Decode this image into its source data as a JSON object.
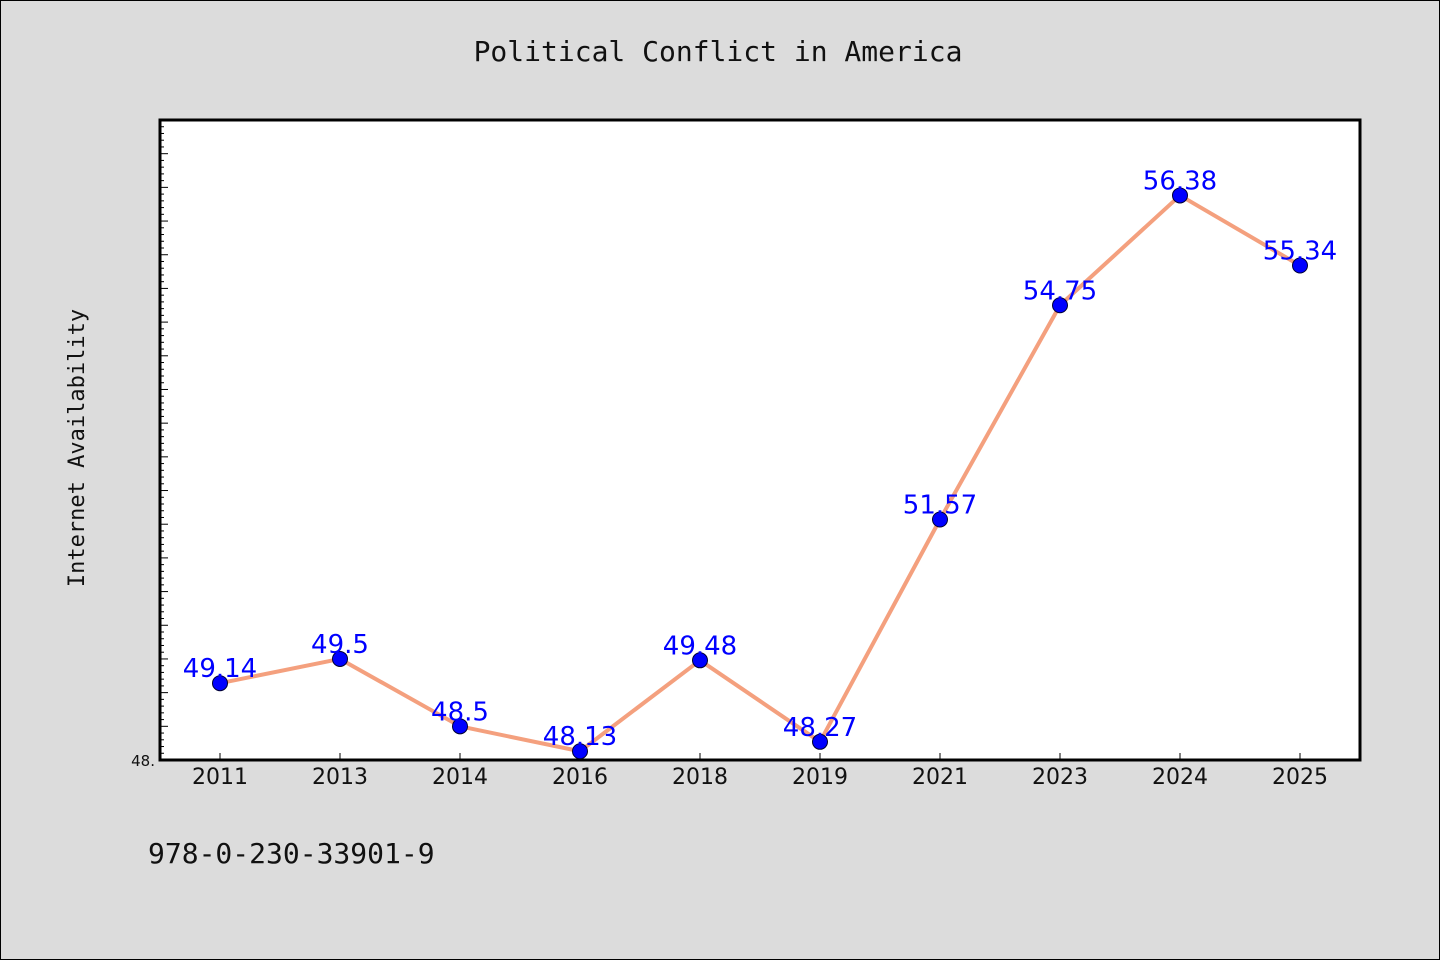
{
  "chart_data": {
    "type": "line",
    "title": "Political Conflict in America",
    "xlabel": "",
    "ylabel": "Internet Availability",
    "categories": [
      "2011",
      "2013",
      "2014",
      "2016",
      "2018",
      "2019",
      "2021",
      "2023",
      "2024",
      "2025"
    ],
    "values": [
      49.14,
      49.5,
      48.5,
      48.13,
      49.48,
      48.27,
      51.57,
      54.75,
      56.38,
      55.34
    ],
    "data_labels": [
      "49.14",
      "49.5",
      "48.5",
      "48.13",
      "49.48",
      "48.27",
      "51.57",
      "54.75",
      "56.38",
      "55.34"
    ],
    "ylim": [
      48.0,
      57.5
    ],
    "ytick_label": "48.",
    "grid": false,
    "colors": {
      "line": "#f4a07e",
      "marker": "#0000ff",
      "label": "#0000ff"
    }
  },
  "footer": {
    "code": "978-0-230-33901-9"
  }
}
